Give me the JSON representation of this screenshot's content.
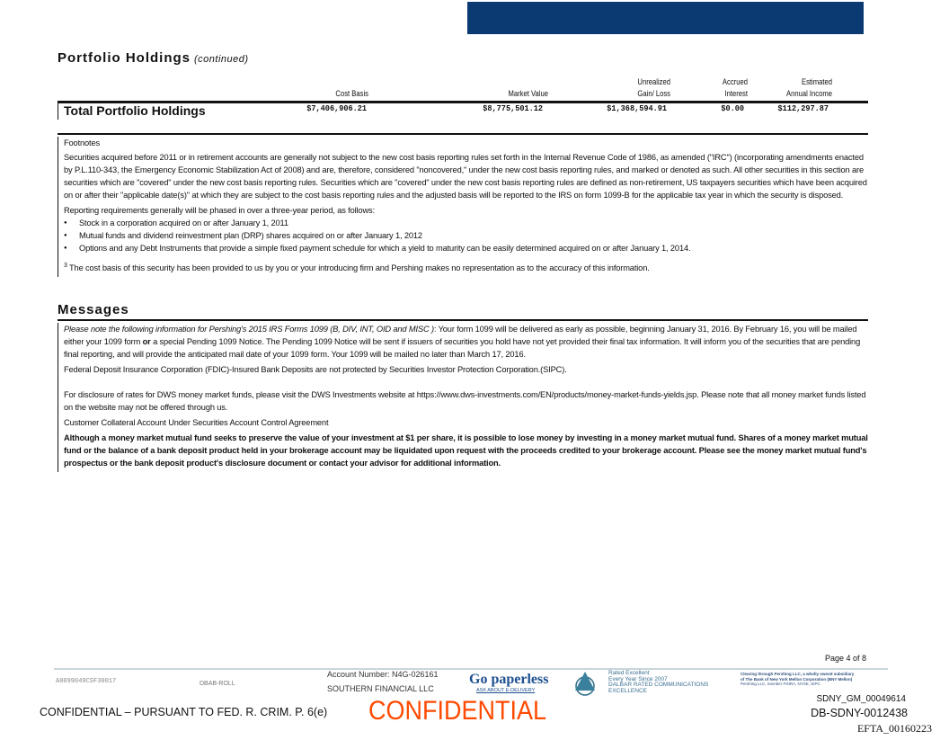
{
  "header": {
    "title": "Portfolio Holdings",
    "title_suffix": "(continued)",
    "brand_color": "#0b3a73"
  },
  "totals": {
    "columns": [
      "Cost Basis",
      "Market Value",
      "Unrealized",
      "Gain/ Loss",
      "Accrued",
      "Interest",
      "Estimated",
      "Annual Income"
    ],
    "label": "Total Portfolio Holdings",
    "values": [
      "$7,406,906.21",
      "$8,775,501.12",
      "$1,368,594.91",
      "$0.00",
      "$112,297.87"
    ]
  },
  "footnotes": {
    "title": "Footnotes",
    "p1": "Securities acquired before 2011 or in retirement accounts are generally not subject to the new cost basis reporting rules set forth in the Internal Revenue Code of 1986, as amended (\"IRC\") (incorporating amendments enacted by P.L.110-343, the Emergency Economic Stabilization Act of 2008) and are, therefore, considered \"noncovered,\" under the new cost basis reporting rules, and marked or denoted as such. All other securities in this section are securities which are \"covered\" under the new cost basis reporting rules. Securities which are \"covered\" under the new cost basis reporting rules are defined as non-retirement, US taxpayers securities which have been acquired on or after their \"applicable date(s)\" at which they are subject to the cost basis reporting rules and the adjusted basis will be reported to the IRS on form 1099-B for the applicable tax year in which the security is disposed.",
    "p2": "Reporting requirements generally will be phased in over a three-year period, as follows:",
    "bullets": [
      "Stock in a corporation acquired on or after January 1, 2011",
      "Mutual funds and dividend reinvestment plan (DRP) shares acquired on or after January 1, 2012",
      "Options and any Debt Instruments that provide a simple fixed payment schedule for which a yield to maturity can be easily determined acquired on or after January 1, 2014."
    ],
    "note_mark": "3",
    "note": "The cost basis of this security has been provided to us by you or your introducing firm and Pershing makes no representation as to the accuracy of this information."
  },
  "messages": {
    "title": "Messages",
    "m1_italic": "Please note the following information for Pershing's 2015 IRS Forms 1099 (B, DIV, INT, OID and MISC  )",
    "m1_a": ": Your form 1099 will be delivered as early as possible, beginning January 31, 2016. By February 16, you will be mailed either your 1099 form ",
    "m1_bold": "or",
    "m1_b": " a special Pending 1099 Notice. The Pending 1099 Notice will be sent if issuers of securities you hold have not yet provided their final tax information. It will inform you of the securities that are pending final reporting, and will provide the anticipated mail date of your 1099 form. Your 1099 will be mailed no later than March 17, 2016.",
    "m2": "Federal Deposit Insurance Corporation (FDIC)-Insured Bank Deposits are not protected by Securities Investor Protection Corporation.(SIPC).",
    "m3": "For disclosure of rates for DWS money market funds, please visit the DWS Investments website at https://www.dws-investments.com/EN/products/money-market-funds-yields.jsp. Please note that all money market funds listed on the website may not be offered through us.",
    "m4": "Customer Collateral Account Under Securities Account Control Agreement",
    "m5": "Although a money market mutual fund seeks to preserve the value of your investment at $1 per share, it is possible to lose money by investing in a money market mutual fund. Shares of a money market mutual fund or the balance of a bank deposit product held in your brokerage account may be liquidated upon request with the proceeds credited to your brokerage account. Please see the money market mutual fund's prospectus or the bank deposit product's disclosure document or contact your advisor for additional information."
  },
  "footer": {
    "page": "Page 4 of 8",
    "code": "A0099049CSF30017",
    "roll": "DBAB-ROLL",
    "account": "Account Number: N4G-026161",
    "name": "SOUTHERN FINANCIAL LLC",
    "paperless": "Go paperless",
    "paperless_sub": "ASK ABOUT E-DELIVERY",
    "dalbar": [
      "Rated Excellent",
      "Every Year Since 2007",
      "DALBAR RATED COMMUNICATIONS",
      "EXCELLENCE"
    ],
    "clearing": [
      "Clearing through Pershing LLC, a wholly owned subsidiary",
      "of The Bank of New York Mellon Corporation (BNY Mellon)",
      "Pershing LLC, member FINRA, NYSE, SIPC"
    ],
    "confidential_stamp": "CONFIDENTIAL",
    "confidential_note": "CONFIDENTIAL – PURSUANT TO FED. R. CRIM. P. 6(e)",
    "bates1": "SDNY_GM_00049614",
    "bates2": "DB-SDNY-0012438",
    "efta": "EFTA_00160223",
    "stamp_color": "#ff4a00"
  }
}
